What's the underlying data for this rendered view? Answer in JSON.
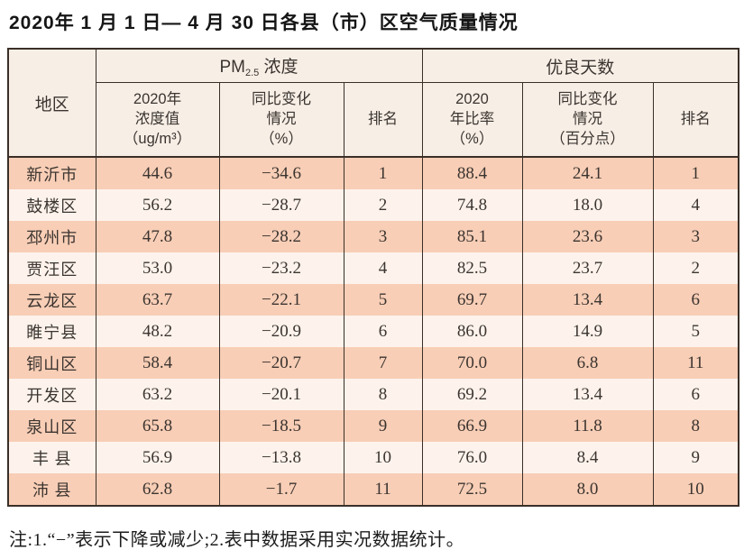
{
  "title": "2020年 1 月 1 日— 4 月 30 日各县（市）区空气质量情况",
  "table": {
    "header": {
      "region": "地区",
      "pm_section": {
        "prefix": "PM",
        "sub": "2.5",
        "suffix": " 浓度"
      },
      "good_days_section": "优良天数",
      "pm_cols": {
        "value": "2020年\n浓度值\n（ug/m³）",
        "change": "同比变化\n情况\n（%）",
        "rank": "排名"
      },
      "good_cols": {
        "rate": "2020\n年比率\n（%）",
        "change": "同比变化\n情况\n（百分点）",
        "rank": "排名"
      }
    },
    "rows": [
      {
        "region": "新沂市",
        "pm_value": "44.6",
        "pm_change": "−34.6",
        "pm_rank": "1",
        "good_rate": "88.4",
        "good_change": "24.1",
        "good_rank": "1"
      },
      {
        "region": "鼓楼区",
        "pm_value": "56.2",
        "pm_change": "−28.7",
        "pm_rank": "2",
        "good_rate": "74.8",
        "good_change": "18.0",
        "good_rank": "4"
      },
      {
        "region": "邳州市",
        "pm_value": "47.8",
        "pm_change": "−28.2",
        "pm_rank": "3",
        "good_rate": "85.1",
        "good_change": "23.6",
        "good_rank": "3"
      },
      {
        "region": "贾汪区",
        "pm_value": "53.0",
        "pm_change": "−23.2",
        "pm_rank": "4",
        "good_rate": "82.5",
        "good_change": "23.7",
        "good_rank": "2"
      },
      {
        "region": "云龙区",
        "pm_value": "63.7",
        "pm_change": "−22.1",
        "pm_rank": "5",
        "good_rate": "69.7",
        "good_change": "13.4",
        "good_rank": "6"
      },
      {
        "region": "睢宁县",
        "pm_value": "48.2",
        "pm_change": "−20.9",
        "pm_rank": "6",
        "good_rate": "86.0",
        "good_change": "14.9",
        "good_rank": "5"
      },
      {
        "region": "铜山区",
        "pm_value": "58.4",
        "pm_change": "−20.7",
        "pm_rank": "7",
        "good_rate": "70.0",
        "good_change": "6.8",
        "good_rank": "11"
      },
      {
        "region": "开发区",
        "pm_value": "63.2",
        "pm_change": "−20.1",
        "pm_rank": "8",
        "good_rate": "69.2",
        "good_change": "13.4",
        "good_rank": "6"
      },
      {
        "region": "泉山区",
        "pm_value": "65.8",
        "pm_change": "−18.5",
        "pm_rank": "9",
        "good_rate": "66.9",
        "good_change": "11.8",
        "good_rank": "8"
      },
      {
        "region": "丰 县",
        "pm_value": "56.9",
        "pm_change": "−13.8",
        "pm_rank": "10",
        "good_rate": "76.0",
        "good_change": "8.4",
        "good_rank": "9"
      },
      {
        "region": "沛 县",
        "pm_value": "62.8",
        "pm_change": "−1.7",
        "pm_rank": "11",
        "good_rate": "72.5",
        "good_change": "8.0",
        "good_rank": "10"
      }
    ]
  },
  "note": "注:1.“−”表示下降或减少;2.表中数据采用实况数据统计。"
}
